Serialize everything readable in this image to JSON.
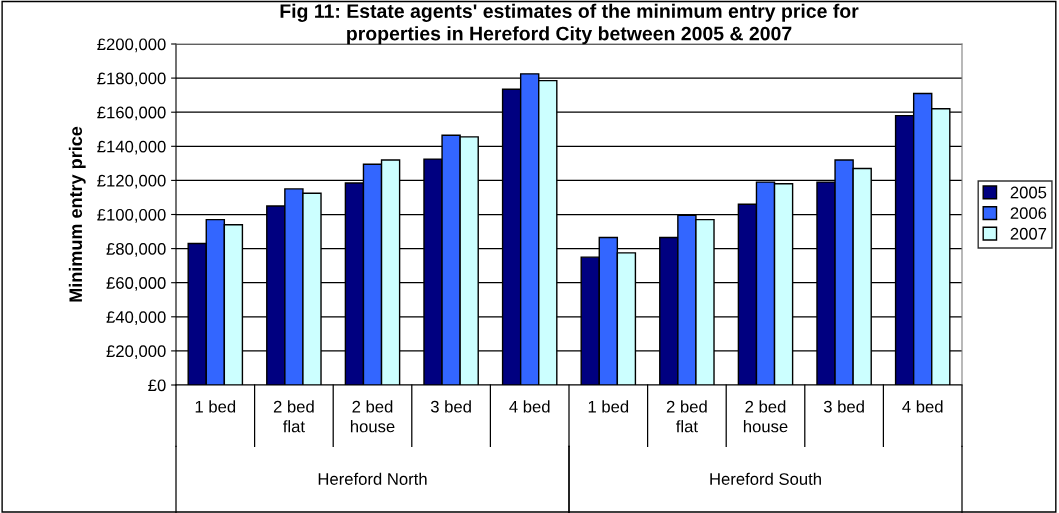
{
  "chart_data": {
    "type": "bar",
    "title": "Fig 11: Estate agents' estimates of the minimum entry price for\nproperties in Hereford City between 2005 & 2007",
    "ylabel": "Minimum entry price",
    "categories": [
      "1 bed",
      "2 bed\nflat",
      "2 bed\nhouse",
      "3 bed",
      "4 bed",
      "1 bed",
      "2 bed\nflat",
      "2 bed\nhouse",
      "3 bed",
      "4 bed"
    ],
    "annotations": [
      "Hereford North",
      "Hereford South"
    ],
    "series": [
      {
        "name": "2005",
        "color": "#000080",
        "values": [
          83000,
          105000,
          118500,
          132500,
          173500,
          75000,
          86500,
          106000,
          119000,
          158000
        ]
      },
      {
        "name": "2006",
        "color": "#3366ff",
        "values": [
          97000,
          115000,
          129500,
          146500,
          182500,
          86500,
          99500,
          119000,
          132000,
          171000
        ]
      },
      {
        "name": "2007",
        "color": "#ccffff",
        "values": [
          94000,
          112500,
          132000,
          145500,
          178500,
          77500,
          97000,
          118000,
          127000,
          162000
        ]
      }
    ],
    "ylim": [
      0,
      200000
    ],
    "yticks": [
      {
        "value": 0,
        "label": "£0"
      },
      {
        "value": 20000,
        "label": "£20,000"
      },
      {
        "value": 40000,
        "label": "£40,000"
      },
      {
        "value": 60000,
        "label": "£60,000"
      },
      {
        "value": 80000,
        "label": "£80,000"
      },
      {
        "value": 100000,
        "label": "£100,000"
      },
      {
        "value": 120000,
        "label": "£120,000"
      },
      {
        "value": 140000,
        "label": "£140,000"
      },
      {
        "value": 160000,
        "label": "£160,000"
      },
      {
        "value": 180000,
        "label": "£180,000"
      },
      {
        "value": 200000,
        "label": "£200,000"
      }
    ],
    "grid": "y",
    "legend": "right"
  }
}
